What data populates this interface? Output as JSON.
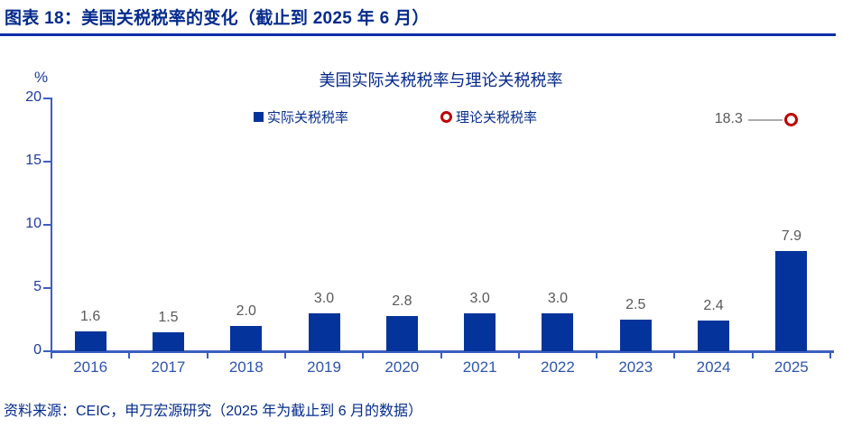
{
  "header": {
    "title": "图表 18：美国关税税率的变化（截止到 2025 年 6 月）"
  },
  "source_note": "资料来源：CEIC，申万宏源研究（2025 年为截止到 6 月的数据）",
  "colors": {
    "title_navy": "#032A8C",
    "bar_fill": "#04339B",
    "axis_blue": "#3B5FC0",
    "tick_label_blue": "#1D3A9E",
    "category_label_blue": "#2E55AE",
    "data_label_gray": "#595959",
    "leader_line_gray": "#ABABAB",
    "marker_red": "#C00000"
  },
  "chart_data": {
    "type": "bar",
    "title": "美国实际关税税率与理论关税税率",
    "unit_label": "%",
    "categories": [
      "2016",
      "2017",
      "2018",
      "2019",
      "2020",
      "2021",
      "2022",
      "2023",
      "2024",
      "2025"
    ],
    "series": [
      {
        "name": "实际关税税率",
        "type": "bar",
        "values": [
          1.6,
          1.5,
          2.0,
          3.0,
          2.8,
          3.0,
          3.0,
          2.5,
          2.4,
          7.9
        ]
      },
      {
        "name": "理论关税税率",
        "type": "marker",
        "points": [
          {
            "category": "2025",
            "value": 18.3
          }
        ]
      }
    ],
    "annotation": {
      "value_label": "18.3"
    },
    "ylim": [
      0,
      20
    ],
    "yticks": [
      0,
      5,
      10,
      15,
      20
    ],
    "grid": false,
    "legend_position": "top"
  }
}
